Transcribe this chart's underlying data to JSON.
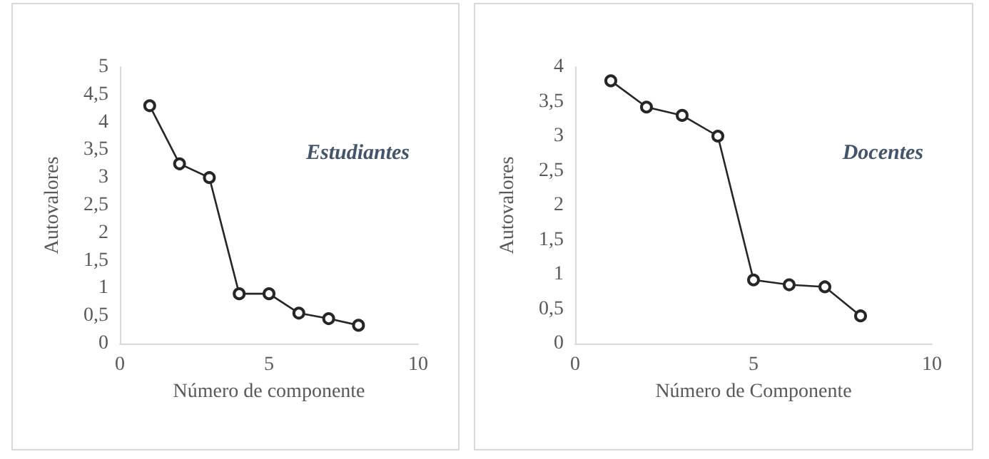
{
  "chart_data": [
    {
      "type": "line",
      "xlabel": "Número de componente",
      "ylabel": "Autovalores",
      "annotations": [
        "Estudiantes"
      ],
      "x": [
        1,
        2,
        3,
        4,
        5,
        6,
        7,
        8
      ],
      "series": [
        {
          "color": "#262626",
          "values": [
            4.3,
            3.25,
            3.0,
            0.9,
            0.9,
            0.55,
            0.45,
            0.33
          ]
        }
      ],
      "xlim": [
        0,
        10
      ],
      "xticks": [
        0,
        5,
        10
      ],
      "ylim": [
        0,
        5
      ],
      "yticks": [
        0,
        {
          "value": 0.5,
          "label": "0,5"
        },
        1,
        {
          "value": 1.5,
          "label": "1,5"
        },
        2,
        {
          "value": 2.5,
          "label": "2,5"
        },
        3,
        {
          "value": 3.5,
          "label": "3,5"
        },
        4,
        {
          "value": 4.5,
          "label": "4,5"
        },
        5
      ],
      "grid": false,
      "marker": "circle",
      "line_style": "solid"
    },
    {
      "type": "line",
      "xlabel": "Número de Componente",
      "ylabel": "Autovalores",
      "annotations": [
        "Docentes"
      ],
      "x": [
        1,
        2,
        3,
        4,
        5,
        6,
        7,
        8
      ],
      "series": [
        {
          "color": "#262626",
          "values": [
            3.8,
            3.42,
            3.3,
            3.0,
            0.92,
            0.85,
            0.82,
            0.4
          ]
        }
      ],
      "xlim": [
        0,
        10
      ],
      "xticks": [
        0,
        5,
        10
      ],
      "ylim": [
        0,
        4
      ],
      "yticks": [
        0,
        {
          "value": 0.5,
          "label": "0,5"
        },
        1,
        {
          "value": 1.5,
          "label": "1,5"
        },
        2,
        {
          "value": 2.5,
          "label": "2,5"
        },
        3,
        {
          "value": 3.5,
          "label": "3,5"
        },
        4
      ],
      "grid": false,
      "marker": "circle",
      "line_style": "solid"
    }
  ]
}
